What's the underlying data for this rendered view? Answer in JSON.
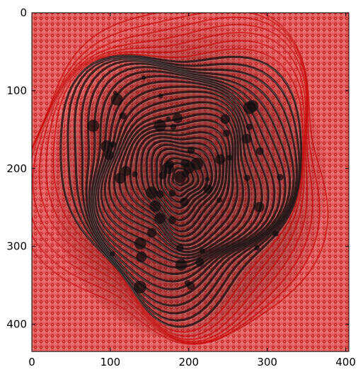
{
  "image": {
    "description_icon": "fingerprint-image-icon",
    "background_color": "#e86a6a",
    "overlay_color": "#c80000",
    "ridge_dark": "#111111",
    "ridge_light": "#bdbdbd"
  },
  "axes": {
    "x_ticks": [
      {
        "value": 0,
        "label": "0"
      },
      {
        "value": 100,
        "label": "100"
      },
      {
        "value": 200,
        "label": "200"
      },
      {
        "value": 300,
        "label": "300"
      },
      {
        "value": 400,
        "label": "400"
      }
    ],
    "y_ticks": [
      {
        "value": 0,
        "label": "0"
      },
      {
        "value": 100,
        "label": "100"
      },
      {
        "value": 200,
        "label": "200"
      },
      {
        "value": 300,
        "label": "300"
      },
      {
        "value": 400,
        "label": "400"
      }
    ],
    "x_range": [
      0,
      404
    ],
    "y_range": [
      0,
      435
    ]
  }
}
